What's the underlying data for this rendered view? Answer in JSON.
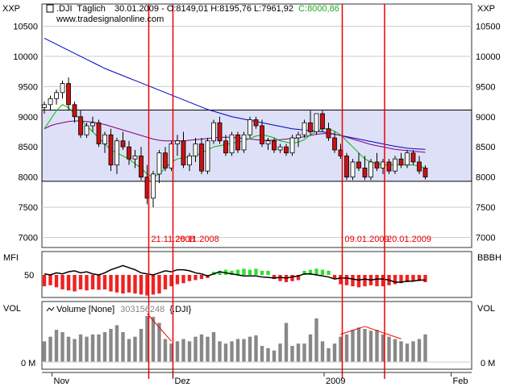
{
  "header": {
    "symbol": ".DJI",
    "period": "Täglich",
    "date": "30.01.2009",
    "quote": "O:8149,01 H:8195,76 L:7961,92",
    "close": "C:8000,86",
    "watermark": "www.tradesignalonline.com",
    "axis_label_left": "XXP",
    "axis_label_right": "XXP"
  },
  "colors": {
    "up_candle": "#ffffff",
    "down_candle": "#cc1111",
    "close_text": "#22aa22",
    "ma_long": "#0000cc",
    "ma_mid": "#800080",
    "ma_short": "#00bb00",
    "channel_fill": "#dde0f7",
    "marker_line": "#ee0000",
    "grid": "#cccccc",
    "mfi_pos": "#33dd33",
    "mfi_neg": "#ee2222",
    "volume_bar": "#888888"
  },
  "chart_data": [
    {
      "type": "candlestick",
      "title": ".DJI Täglich",
      "ylim": [
        6900,
        10800
      ],
      "yticks": [
        7000,
        7500,
        8000,
        8500,
        9000,
        9500,
        10000,
        10500
      ],
      "ytick_labels": [
        "7000",
        "7500",
        "8000",
        "8500",
        "9000",
        "9500",
        "10000",
        "10500"
      ],
      "x_labels": [
        {
          "index": 1,
          "label": "Nov"
        },
        {
          "index": 21,
          "label": "Dez"
        },
        {
          "index": 46,
          "label": "2009"
        },
        {
          "index": 67,
          "label": "Feb"
        }
      ],
      "x_count": 68,
      "candles": [
        [
          9150,
          9250,
          9050,
          9200
        ],
        [
          9200,
          9350,
          9100,
          9300
        ],
        [
          9300,
          9450,
          9200,
          9400
        ],
        [
          9400,
          9600,
          9300,
          9550
        ],
        [
          9550,
          9650,
          9100,
          9200
        ],
        [
          9200,
          9250,
          8900,
          9000
        ],
        [
          9000,
          9100,
          8650,
          8700
        ],
        [
          8700,
          8900,
          8650,
          8850
        ],
        [
          8850,
          9000,
          8750,
          8900
        ],
        [
          8900,
          8950,
          8500,
          8550
        ],
        [
          8550,
          8750,
          8400,
          8700
        ],
        [
          8700,
          8800,
          8100,
          8200
        ],
        [
          8200,
          8650,
          8050,
          8600
        ],
        [
          8600,
          8750,
          8450,
          8500
        ],
        [
          8500,
          8600,
          8200,
          8300
        ],
        [
          8300,
          8450,
          8150,
          8350
        ],
        [
          8350,
          8500,
          7950,
          8000
        ],
        [
          8000,
          8200,
          7550,
          7650
        ],
        [
          7650,
          8100,
          7500,
          8050
        ],
        [
          8050,
          8450,
          7900,
          8400
        ],
        [
          8400,
          8500,
          8100,
          8150
        ],
        [
          8150,
          8600,
          8100,
          8550
        ],
        [
          8550,
          8700,
          8350,
          8600
        ],
        [
          8600,
          8750,
          8150,
          8200
        ],
        [
          8200,
          8400,
          8100,
          8350
        ],
        [
          8350,
          8650,
          8250,
          8550
        ],
        [
          8550,
          8650,
          8050,
          8100
        ],
        [
          8100,
          8650,
          8050,
          8600
        ],
        [
          8600,
          8950,
          8550,
          8900
        ],
        [
          8900,
          9000,
          8550,
          8600
        ],
        [
          8600,
          8700,
          8350,
          8400
        ],
        [
          8400,
          8750,
          8350,
          8700
        ],
        [
          8700,
          8750,
          8400,
          8450
        ],
        [
          8450,
          8750,
          8400,
          8700
        ],
        [
          8700,
          9000,
          8650,
          8950
        ],
        [
          8950,
          9000,
          8800,
          8850
        ],
        [
          8850,
          8950,
          8500,
          8550
        ],
        [
          8550,
          8650,
          8450,
          8600
        ],
        [
          8600,
          8650,
          8400,
          8450
        ],
        [
          8450,
          8550,
          8400,
          8500
        ],
        [
          8500,
          8550,
          8350,
          8400
        ],
        [
          8400,
          8700,
          8350,
          8650
        ],
        [
          8650,
          8750,
          8500,
          8700
        ],
        [
          8700,
          8950,
          8650,
          8900
        ],
        [
          8900,
          9100,
          8700,
          8750
        ],
        [
          8750,
          9050,
          8700,
          9050
        ],
        [
          9050,
          9100,
          8750,
          8800
        ],
        [
          8800,
          8900,
          8600,
          8650
        ],
        [
          8650,
          8750,
          8400,
          8450
        ],
        [
          8450,
          8550,
          8300,
          8350
        ],
        [
          8350,
          8400,
          7950,
          8000
        ],
        [
          8000,
          8300,
          7950,
          8250
        ],
        [
          8250,
          8400,
          8100,
          8150
        ],
        [
          8150,
          8350,
          7950,
          8000
        ],
        [
          8000,
          8300,
          7950,
          8250
        ],
        [
          8250,
          8400,
          8100,
          8150
        ],
        [
          8150,
          8300,
          8050,
          8250
        ],
        [
          8250,
          8300,
          8050,
          8100
        ],
        [
          8100,
          8350,
          8050,
          8300
        ],
        [
          8300,
          8400,
          8150,
          8200
        ],
        [
          8200,
          8450,
          8150,
          8400
        ],
        [
          8400,
          8450,
          8200,
          8250
        ],
        [
          8250,
          8350,
          8050,
          8100
        ],
        [
          8149,
          8196,
          7962,
          8001
        ]
      ],
      "series": [
        {
          "name": "",
          "style": "ma_long",
          "values": [
            10300,
            10250,
            10200,
            10150,
            10100,
            10050,
            10000,
            9950,
            9900,
            9850,
            9800,
            9760,
            9720,
            9680,
            9640,
            9600,
            9560,
            9520,
            9480,
            9440,
            9400,
            9360,
            9320,
            9280,
            9240,
            9200,
            9160,
            9120,
            9090,
            9060,
            9030,
            9000,
            8980,
            8960,
            8940,
            8920,
            8900,
            8880,
            8860,
            8840,
            8820,
            8800,
            8790,
            8780,
            8770,
            8760,
            8750,
            8730,
            8710,
            8690,
            8670,
            8650,
            8630,
            8610,
            8590,
            8570,
            8550,
            8530,
            8510,
            8495,
            8480,
            8470,
            8465,
            8460
          ]
        },
        {
          "name": "",
          "style": "ma_mid",
          "values": [
            8800,
            8850,
            8880,
            8900,
            8920,
            8930,
            8930,
            8920,
            8910,
            8890,
            8870,
            8840,
            8810,
            8780,
            8750,
            8720,
            8690,
            8660,
            8630,
            8610,
            8600,
            8600,
            8600,
            8600,
            8610,
            8620,
            8630,
            8640,
            8650,
            8660,
            8660,
            8660,
            8650,
            8640,
            8630,
            8620,
            8610,
            8610,
            8610,
            8620,
            8630,
            8640,
            8650,
            8670,
            8690,
            8710,
            8720,
            8720,
            8710,
            8690,
            8660,
            8630,
            8600,
            8570,
            8540,
            8520,
            8500,
            8480,
            8460,
            8450,
            8440,
            8430,
            8420,
            8410
          ]
        },
        {
          "name": "",
          "style": "ma_short",
          "values": [
            8800,
            8950,
            9100,
            9200,
            9150,
            9050,
            8950,
            8850,
            8750,
            8650,
            8550,
            8450,
            8400,
            8350,
            8300,
            8220,
            8150,
            8050,
            8000,
            8050,
            8150,
            8250,
            8300,
            8320,
            8330,
            8360,
            8400,
            8450,
            8500,
            8520,
            8540,
            8560,
            8580,
            8600,
            8640,
            8680,
            8700,
            8680,
            8650,
            8600,
            8580,
            8560,
            8580,
            8620,
            8700,
            8760,
            8800,
            8800,
            8760,
            8700,
            8600,
            8500,
            8400,
            8300,
            8250,
            8220,
            8200,
            8200,
            8200,
            8200,
            8200,
            8200,
            8180,
            8150
          ]
        }
      ],
      "channel": [
        7930,
        9110
      ],
      "marker_labels": [
        "21.11.2008",
        "28.11.2008",
        "09.01.2009",
        "20.01.2009"
      ],
      "markers": [
        {
          "index": 17,
          "label_key": 0
        },
        {
          "index": 21,
          "label_key": 1
        },
        {
          "index": 49,
          "label_key": 2
        },
        {
          "index": 56,
          "label_key": 3
        }
      ]
    },
    {
      "type": "bar",
      "title": "MFI",
      "right_label": "BBBH",
      "ytick_labels": [
        "50"
      ],
      "ylim": [
        -1,
        1
      ],
      "values": [
        -0.55,
        -0.5,
        -0.6,
        -0.7,
        -0.75,
        -0.8,
        -0.7,
        -0.75,
        -0.7,
        -0.72,
        -0.7,
        -0.8,
        -0.85,
        -0.9,
        -0.85,
        -0.9,
        -0.95,
        -1,
        -0.95,
        -0.9,
        -0.7,
        -0.55,
        -0.45,
        -0.4,
        -0.3,
        -0.25,
        -0.2,
        -0.15,
        0.15,
        0.2,
        0.25,
        0.2,
        0.25,
        0.3,
        0.25,
        0.3,
        0.2,
        0.2,
        -0.2,
        -0.3,
        -0.35,
        -0.3,
        -0.25,
        0.2,
        0.25,
        0.3,
        0.25,
        0.2,
        -0.2,
        -0.45,
        -0.5,
        -0.55,
        -0.6,
        -0.55,
        -0.5,
        -0.55,
        -0.55,
        -0.5,
        -0.45,
        -0.4,
        -0.35,
        -0.3,
        -0.3,
        -0.35
      ],
      "line": [
        0.05,
        0.0,
        0.1,
        0.05,
        0.15,
        0.2,
        0.1,
        0.15,
        0.05,
        0.0,
        0.1,
        0.25,
        0.35,
        0.45,
        0.35,
        0.25,
        0.1,
        0.05,
        0.0,
        0.1,
        0.2,
        0.15,
        0.25,
        0.25,
        0.2,
        0.1,
        0.05,
        -0.05,
        0.05,
        0.15,
        0.1,
        0.05,
        0.0,
        -0.05,
        -0.05,
        -0.05,
        -0.1,
        -0.12,
        -0.15,
        -0.12,
        -0.15,
        -0.1,
        -0.05,
        0.05,
        0.05,
        0.0,
        -0.05,
        -0.1,
        -0.2,
        -0.15,
        -0.15,
        -0.2,
        -0.25,
        -0.2,
        -0.25,
        -0.2,
        -0.2,
        -0.25,
        -0.35,
        -0.35,
        -0.3,
        -0.3,
        -0.25,
        -0.25
      ]
    },
    {
      "type": "bar",
      "title": "VOL",
      "right_label": "VOL",
      "legend": "Volume [None]",
      "legend_value": "303156248",
      "legend_symbol": "{.DJI}",
      "ytick_labels": [
        "0 M"
      ],
      "ylim": [
        0,
        1
      ],
      "values": [
        0.45,
        0.55,
        0.7,
        0.65,
        0.55,
        0.5,
        0.6,
        0.55,
        0.6,
        0.6,
        0.65,
        0.72,
        0.8,
        0.65,
        0.5,
        0.55,
        0.72,
        1.0,
        0.98,
        0.85,
        0.5,
        0.4,
        0.45,
        0.5,
        0.45,
        0.55,
        0.6,
        0.55,
        0.65,
        0.45,
        0.4,
        0.45,
        0.5,
        0.5,
        0.55,
        0.58,
        0.35,
        0.3,
        0.25,
        0.4,
        0.85,
        0.35,
        0.4,
        0.4,
        0.6,
        0.95,
        0.45,
        0.3,
        0.4,
        0.55,
        0.6,
        0.7,
        0.75,
        0.72,
        0.68,
        0.7,
        0.6,
        0.55,
        0.5,
        0.45,
        0.4,
        0.45,
        0.5,
        0.6
      ]
    }
  ]
}
